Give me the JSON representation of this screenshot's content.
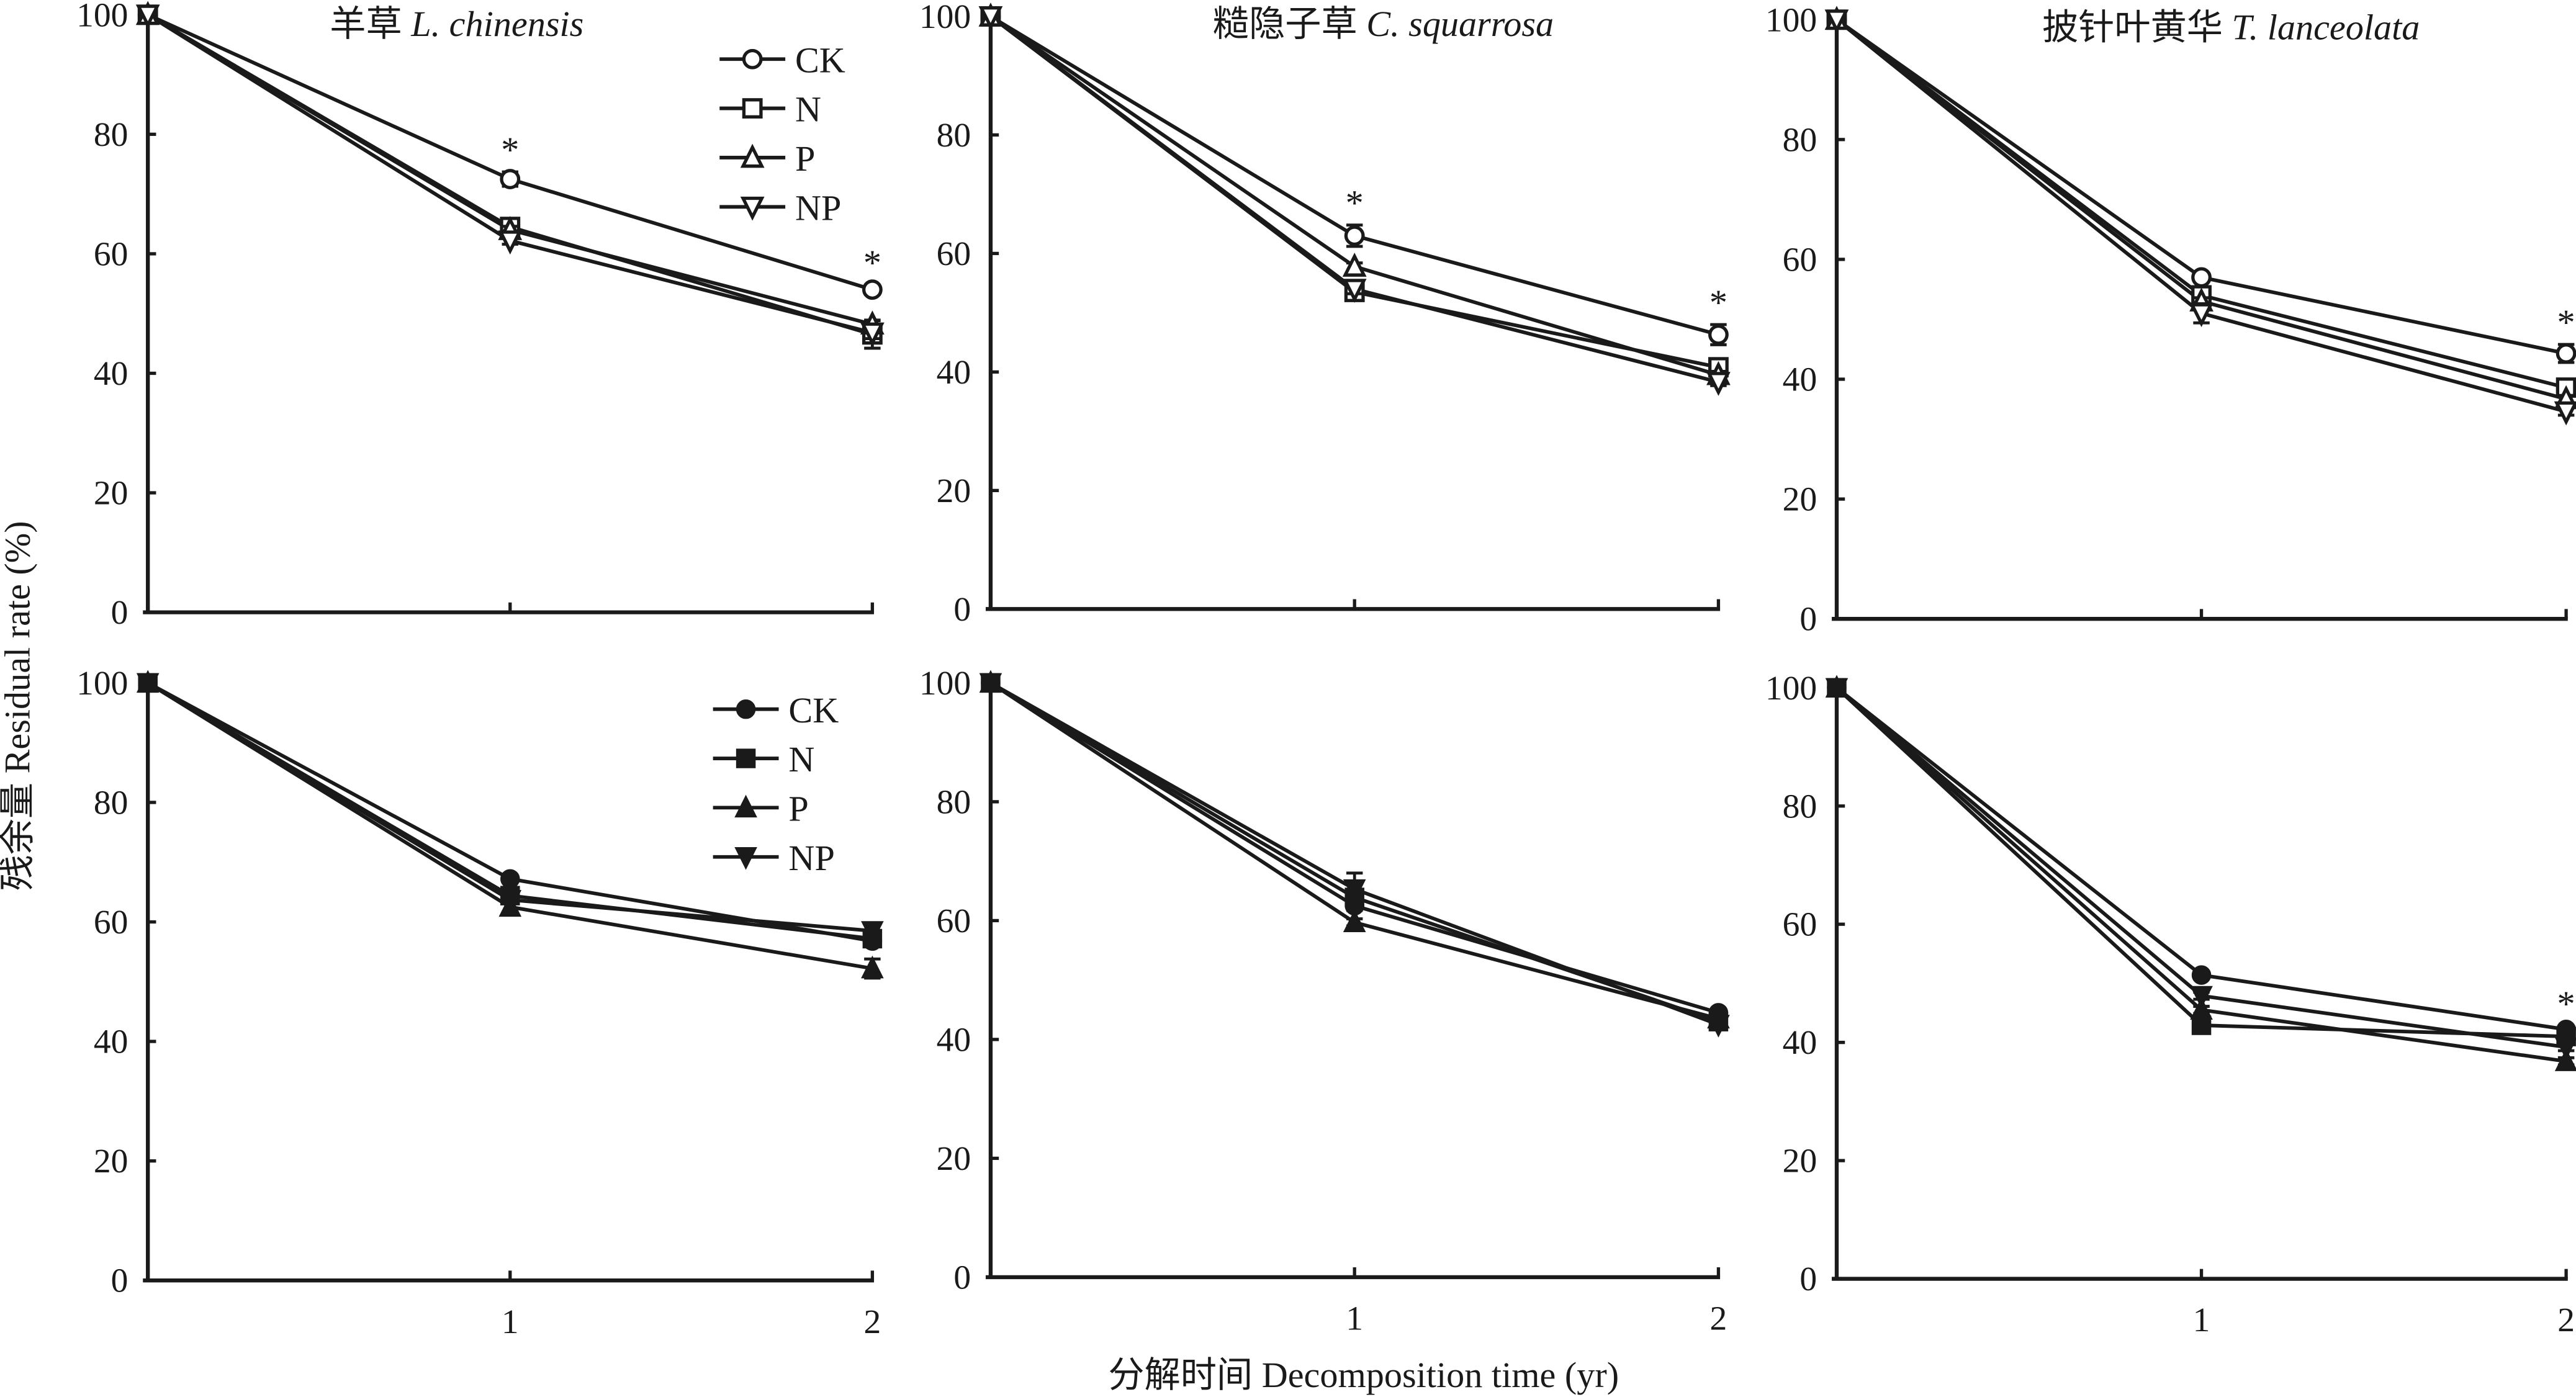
{
  "figure": {
    "ylabel": "残余量 Residual rate (%)",
    "xlabel": "分解时间 Decomposition time (yr)"
  },
  "legend": [
    {
      "name": "CK",
      "marker": "circle"
    },
    {
      "name": "N",
      "marker": "square"
    },
    {
      "name": "P",
      "marker": "triangle-up"
    },
    {
      "name": "NP",
      "marker": "triangle-down"
    }
  ],
  "chart_data": [
    {
      "type": "line",
      "row": "top",
      "marker_style": "open",
      "title_cn": "羊草",
      "title_sci": "L. chinensis",
      "x": [
        0,
        1,
        2
      ],
      "xticks": [
        "1",
        "2"
      ],
      "yticks": [
        "0",
        "20",
        "40",
        "60",
        "80",
        "100"
      ],
      "ylim": [
        0,
        100
      ],
      "legend": true,
      "series": [
        {
          "name": "CK",
          "values": [
            100,
            72.5,
            54
          ],
          "err": [
            0,
            1.2,
            0.8
          ]
        },
        {
          "name": "N",
          "values": [
            100,
            64.5,
            46.5
          ],
          "err": [
            0,
            0.8,
            2.3
          ]
        },
        {
          "name": "P",
          "values": [
            100,
            64,
            48.2
          ],
          "err": [
            0,
            0.6,
            0.7
          ]
        },
        {
          "name": "NP",
          "values": [
            100,
            62.2,
            46.8
          ],
          "err": [
            0,
            0.6,
            1.0
          ]
        }
      ],
      "significance": [
        false,
        true,
        true
      ]
    },
    {
      "type": "line",
      "row": "top",
      "marker_style": "open",
      "title_cn": "糙隐子草",
      "title_sci": "C. squarrosa",
      "x": [
        0,
        1,
        2
      ],
      "xticks": [
        "1",
        "2"
      ],
      "yticks": [
        "0",
        "20",
        "40",
        "60",
        "80",
        "100"
      ],
      "ylim": [
        0,
        100
      ],
      "legend": false,
      "series": [
        {
          "name": "CK",
          "values": [
            100,
            63,
            46.3
          ],
          "err": [
            0,
            1.8,
            1.7
          ]
        },
        {
          "name": "N",
          "values": [
            100,
            53.5,
            40.8
          ],
          "err": [
            0,
            1.0,
            1.0
          ]
        },
        {
          "name": "P",
          "values": [
            100,
            57.8,
            39.5
          ],
          "err": [
            0,
            0.6,
            0.6
          ]
        },
        {
          "name": "NP",
          "values": [
            100,
            54,
            38.3
          ],
          "err": [
            0,
            0.8,
            0.6
          ]
        }
      ],
      "significance": [
        false,
        true,
        true
      ]
    },
    {
      "type": "line",
      "row": "top",
      "marker_style": "open",
      "title_cn": "披针叶黄华",
      "title_sci": "T. lanceolata",
      "x": [
        0,
        1,
        2
      ],
      "xticks": [
        "1",
        "2"
      ],
      "yticks": [
        "0",
        "20",
        "40",
        "60",
        "80",
        "100"
      ],
      "ylim": [
        0,
        100
      ],
      "legend": false,
      "series": [
        {
          "name": "CK",
          "values": [
            100,
            57,
            44.3
          ],
          "err": [
            0,
            0.6,
            1.5
          ]
        },
        {
          "name": "N",
          "values": [
            100,
            54,
            38.6
          ],
          "err": [
            0,
            0.8,
            0.6
          ]
        },
        {
          "name": "P",
          "values": [
            100,
            53,
            36.7
          ],
          "err": [
            0,
            0.6,
            0.6
          ]
        },
        {
          "name": "NP",
          "values": [
            100,
            51,
            34.6
          ],
          "err": [
            0,
            1.6,
            0.6
          ]
        }
      ],
      "significance": [
        false,
        false,
        true
      ]
    },
    {
      "type": "line",
      "row": "bottom",
      "marker_style": "filled",
      "title_cn": "",
      "title_sci": "",
      "x": [
        0,
        1,
        2
      ],
      "xticks": [
        "1",
        "2"
      ],
      "yticks": [
        "0",
        "20",
        "40",
        "60",
        "80",
        "100"
      ],
      "ylim": [
        0,
        100
      ],
      "legend": true,
      "series": [
        {
          "name": "CK",
          "values": [
            100,
            67.2,
            56.8
          ],
          "err": [
            0,
            0.6,
            0.8
          ]
        },
        {
          "name": "N",
          "values": [
            100,
            64.4,
            57.2
          ],
          "err": [
            0,
            0.8,
            0.8
          ]
        },
        {
          "name": "P",
          "values": [
            100,
            62.5,
            52.2
          ],
          "err": [
            0,
            0.8,
            1.6
          ]
        },
        {
          "name": "NP",
          "values": [
            100,
            63.7,
            58.5
          ],
          "err": [
            0,
            0.6,
            1.0
          ]
        }
      ],
      "significance": [
        false,
        false,
        false
      ]
    },
    {
      "type": "line",
      "row": "bottom",
      "marker_style": "filled",
      "title_cn": "",
      "title_sci": "",
      "x": [
        0,
        1,
        2
      ],
      "xticks": [
        "1",
        "2"
      ],
      "yticks": [
        "0",
        "20",
        "40",
        "60",
        "80",
        "100"
      ],
      "ylim": [
        0,
        100
      ],
      "legend": false,
      "series": [
        {
          "name": "CK",
          "values": [
            100,
            62.5,
            44.5
          ],
          "err": [
            0,
            0.8,
            0.6
          ]
        },
        {
          "name": "N",
          "values": [
            100,
            63.9,
            43
          ],
          "err": [
            0,
            0.8,
            0.6
          ]
        },
        {
          "name": "P",
          "values": [
            100,
            59.7,
            43.5
          ],
          "err": [
            0,
            0.6,
            0.6
          ]
        },
        {
          "name": "NP",
          "values": [
            100,
            65.3,
            42.5
          ],
          "err": [
            0,
            2.7,
            0.6
          ]
        }
      ],
      "significance": [
        false,
        false,
        false
      ]
    },
    {
      "type": "line",
      "row": "bottom",
      "marker_style": "filled",
      "title_cn": "",
      "title_sci": "",
      "x": [
        0,
        1,
        2
      ],
      "xticks": [
        "1",
        "2"
      ],
      "yticks": [
        "0",
        "20",
        "40",
        "60",
        "80",
        "100"
      ],
      "ylim": [
        0,
        100
      ],
      "legend": false,
      "series": [
        {
          "name": "CK",
          "values": [
            100,
            51.4,
            42.2
          ],
          "err": [
            0,
            0.6,
            0.6
          ]
        },
        {
          "name": "N",
          "values": [
            100,
            42.9,
            41
          ],
          "err": [
            0,
            0.6,
            0.6
          ]
        },
        {
          "name": "P",
          "values": [
            100,
            45.5,
            36.8
          ],
          "err": [
            0,
            0.6,
            0.6
          ]
        },
        {
          "name": "NP",
          "values": [
            100,
            47.9,
            39.2
          ],
          "err": [
            0,
            0.6,
            0.6
          ]
        }
      ],
      "significance": [
        false,
        false,
        true
      ]
    }
  ]
}
